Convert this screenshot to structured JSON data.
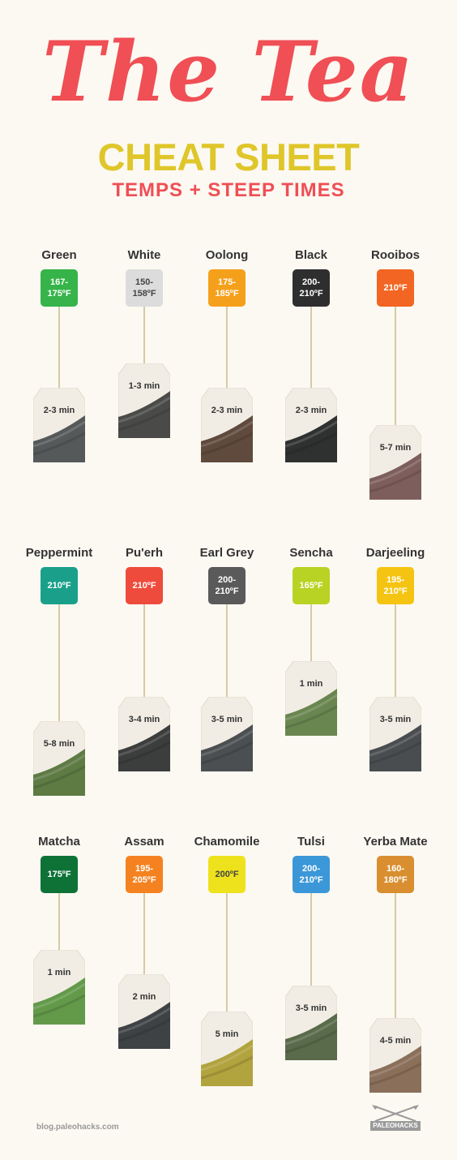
{
  "header": {
    "title_script": "The Tea",
    "title_main": "CHEAT SHEET",
    "subtitle": "TEMPS + STEEP TIMES"
  },
  "teas": [
    {
      "name": "Green",
      "temp": "167-\n175ºF",
      "time": "2-3 min",
      "tag_color": "#36b44a",
      "leaf_color": "#56595a"
    },
    {
      "name": "White",
      "temp": "150-\n158ºF",
      "time": "1-3 min",
      "tag_color": "#dcdcdc",
      "leaf_color": "#4a4a48",
      "dark_text": true
    },
    {
      "name": "Oolong",
      "temp": "175-\n185ºF",
      "time": "2-3 min",
      "tag_color": "#f5a01a",
      "leaf_color": "#5f4a3d"
    },
    {
      "name": "Black",
      "temp": "200-\n210ºF",
      "time": "2-3 min",
      "tag_color": "#2e2e2e",
      "leaf_color": "#2f3130"
    },
    {
      "name": "Rooibos",
      "temp": "210ºF",
      "time": "5-7 min",
      "tag_color": "#f26522",
      "leaf_color": "#7e5e5c"
    },
    {
      "name": "Peppermint",
      "temp": "210ºF",
      "time": "5-8 min",
      "tag_color": "#1aa08a",
      "leaf_color": "#5e7b44"
    },
    {
      "name": "Pu'erh",
      "temp": "210ºF",
      "time": "3-4 min",
      "tag_color": "#ee4b3c",
      "leaf_color": "#3c3d3d"
    },
    {
      "name": "Earl Grey",
      "temp": "200-\n210ºF",
      "time": "3-5 min",
      "tag_color": "#5a5a5a",
      "leaf_color": "#4b4f52"
    },
    {
      "name": "Sencha",
      "temp": "165ºF",
      "time": "1 min",
      "tag_color": "#b9d324",
      "leaf_color": "#6a8650"
    },
    {
      "name": "Darjeeling",
      "temp": "195-\n210ºF",
      "time": "3-5 min",
      "tag_color": "#f5c413",
      "leaf_color": "#4a4d50"
    },
    {
      "name": "Matcha",
      "temp": "175ºF",
      "time": "1 min",
      "tag_color": "#0e7237",
      "leaf_color": "#639a4a"
    },
    {
      "name": "Assam",
      "temp": "195-\n205ºF",
      "time": "2 min",
      "tag_color": "#f58220",
      "leaf_color": "#3f4244"
    },
    {
      "name": "Chamomile",
      "temp": "200ºF",
      "time": "5 min",
      "tag_color": "#eee21d",
      "leaf_color": "#b1a33e",
      "dark_text": true
    },
    {
      "name": "Tulsi",
      "temp": "200-\n210ºF",
      "time": "3-5 min",
      "tag_color": "#3b97d8",
      "leaf_color": "#596b4a"
    },
    {
      "name": "Yerba Mate",
      "temp": "160-\n180ºF",
      "time": "4-5 min",
      "tag_color": "#d98f30",
      "leaf_color": "#8a6f5a"
    }
  ],
  "footer": {
    "url": "blog.paleohacks.com",
    "logo_text": "PALEOHACKS"
  }
}
